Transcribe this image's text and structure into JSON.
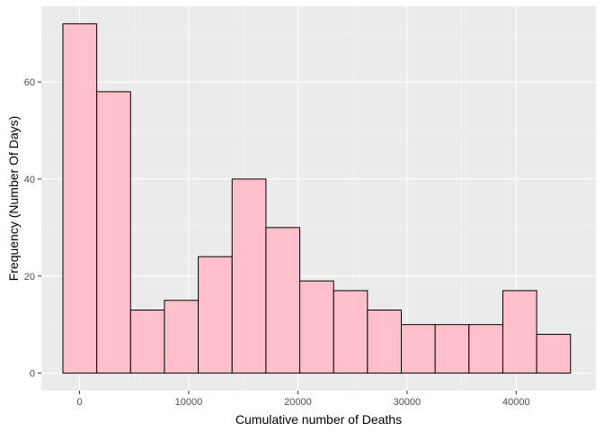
{
  "chart_data": {
    "type": "bar",
    "histogram": true,
    "title": "",
    "xlabel": "Cumulative number of Deaths",
    "ylabel": "Frequency (Number Of Days)",
    "bin_edges": [
      -1525,
      1575,
      4675,
      7775,
      10875,
      13975,
      17075,
      20175,
      23275,
      26375,
      29475,
      32575,
      35675,
      38775,
      41875,
      44975
    ],
    "bin_width": 3100,
    "values": [
      72,
      58,
      13,
      15,
      24,
      40,
      30,
      19,
      17,
      13,
      10,
      10,
      10,
      17,
      8
    ],
    "xlim": [
      -3500,
      47300
    ],
    "ylim": [
      -3.6,
      75.6
    ],
    "x_ticks": [
      0,
      10000,
      20000,
      30000,
      40000
    ],
    "x_tick_labels": [
      "0",
      "10000",
      "20000",
      "30000",
      "40000"
    ],
    "y_ticks": [
      0,
      20,
      40,
      60
    ],
    "y_tick_labels": [
      "0",
      "20",
      "40",
      "60"
    ],
    "grid": true,
    "colors": {
      "bar_fill": "#FFC0CB",
      "bar_stroke": "#000000",
      "panel_background": "#EBEBEB",
      "grid_major": "#FFFFFF",
      "grid_minor": "#F5F5F5",
      "tick_label": "#4D4D4D",
      "axis_title": "#000000"
    }
  }
}
